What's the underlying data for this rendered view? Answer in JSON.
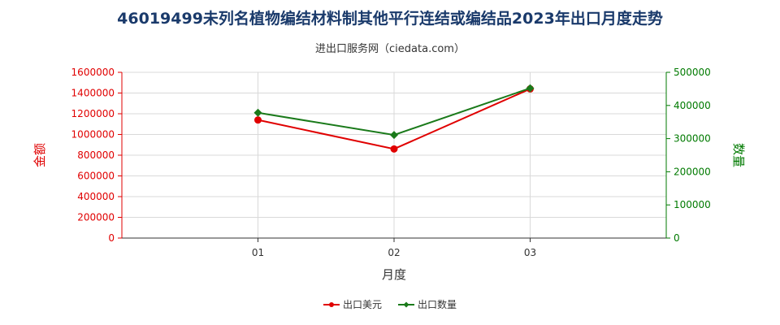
{
  "title": "46019499未列名植物编结材料制其他平行连结或编结品2023年出口月度走势",
  "subtitle": "进出口服务网（ciedata.com）",
  "chart_data": {
    "type": "line",
    "xlabel": "月度",
    "ylabel_left": "金额",
    "ylabel_right": "数量",
    "categories": [
      "01",
      "02",
      "03"
    ],
    "left_axis": {
      "ylim": [
        0,
        1600000
      ],
      "ticks": [
        "0",
        "200000",
        "400000",
        "600000",
        "800000",
        "1000000",
        "1200000",
        "1400000",
        "1600000"
      ],
      "color": "#e00000"
    },
    "right_axis": {
      "ylim": [
        0,
        500000
      ],
      "ticks": [
        "0",
        "100000",
        "200000",
        "300000",
        "400000",
        "500000"
      ],
      "color": "#007a00"
    },
    "series": [
      {
        "name": "出口美元",
        "axis": "left",
        "color": "#e00000",
        "marker": "circle",
        "values": [
          1140000,
          860000,
          1440000
        ]
      },
      {
        "name": "出口数量",
        "axis": "right",
        "color": "#1a7a1a",
        "marker": "diamond",
        "values": [
          378000,
          311000,
          452000
        ]
      }
    ],
    "grid": true,
    "legend_position": "bottom-center"
  }
}
